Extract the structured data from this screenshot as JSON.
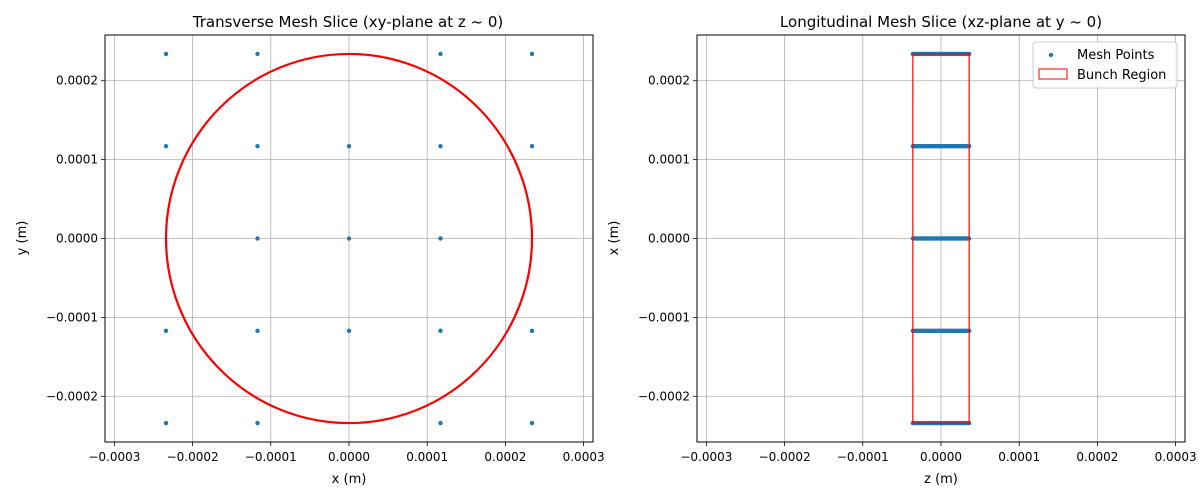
{
  "chart_data": [
    {
      "type": "scatter",
      "title": "Transverse Mesh Slice (xy-plane at z ~ 0)",
      "xlabel": "x (m)",
      "ylabel": "y (m)",
      "xlim": [
        -0.000312,
        0.000312
      ],
      "ylim": [
        -0.000258,
        0.000258
      ],
      "xticks": [
        -0.0003,
        -0.0002,
        -0.0001,
        0.0,
        0.0001,
        0.0002,
        0.0003
      ],
      "xtick_labels": [
        "−0.0003",
        "−0.0002",
        "−0.0001",
        "0.0000",
        "0.0001",
        "0.0002",
        "0.0003"
      ],
      "yticks": [
        -0.0002,
        -0.0001,
        0.0,
        0.0001,
        0.0002
      ],
      "ytick_labels": [
        "−0.0002",
        "−0.0001",
        "0.0000",
        "0.0001",
        "0.0002"
      ],
      "grid": true,
      "legend": null,
      "series": [
        {
          "kind": "points",
          "color": "#1f77b4",
          "x": [
            -0.000234,
            -0.000117,
            0.000117,
            0.000234,
            -0.000234,
            -0.000117,
            0.0,
            0.000117,
            0.000234,
            -0.000117,
            0.0,
            0.000117,
            -0.000234,
            -0.000117,
            0.0,
            0.000117,
            0.000234,
            -0.000234,
            -0.000117,
            0.000117,
            0.000234
          ],
          "y": [
            0.000234,
            0.000234,
            0.000234,
            0.000234,
            0.000117,
            0.000117,
            0.000117,
            0.000117,
            0.000117,
            0.0,
            0.0,
            0.0,
            -0.000117,
            -0.000117,
            -0.000117,
            -0.000117,
            -0.000117,
            -0.000234,
            -0.000234,
            -0.000234,
            -0.000234
          ]
        },
        {
          "kind": "circle",
          "color": "#ff0000",
          "center": [
            0.0,
            0.0
          ],
          "radius": 0.000234
        }
      ]
    },
    {
      "type": "scatter",
      "title": "Longitudinal Mesh Slice (xz-plane at y ~ 0)",
      "xlabel": "z (m)",
      "ylabel": "x (m)",
      "xlim": [
        -0.000312,
        0.000312
      ],
      "ylim": [
        -0.000258,
        0.000258
      ],
      "xticks": [
        -0.0003,
        -0.0002,
        -0.0001,
        0.0,
        0.0001,
        0.0002,
        0.0003
      ],
      "xtick_labels": [
        "−0.0003",
        "−0.0002",
        "−0.0001",
        "0.0000",
        "0.0001",
        "0.0002",
        "0.0003"
      ],
      "yticks": [
        -0.0002,
        -0.0001,
        0.0,
        0.0001,
        0.0002
      ],
      "ytick_labels": [
        "−0.0002",
        "−0.0001",
        "0.0000",
        "0.0001",
        "0.0002"
      ],
      "grid": true,
      "legend": "top-right",
      "series": [
        {
          "kind": "points",
          "name": "Mesh Points",
          "color": "#1f77b4",
          "z_range": [
            -3.6e-05,
            3.6e-05
          ],
          "points_per_row": 40,
          "x_rows": [
            0.000234,
            0.000117,
            0.0,
            -0.000117,
            -0.000234
          ]
        },
        {
          "kind": "rect",
          "name": "Bunch Region",
          "color": "#ff0000",
          "z": [
            -3.6e-05,
            3.6e-05
          ],
          "x": [
            -0.000234,
            0.000234
          ]
        }
      ]
    }
  ]
}
